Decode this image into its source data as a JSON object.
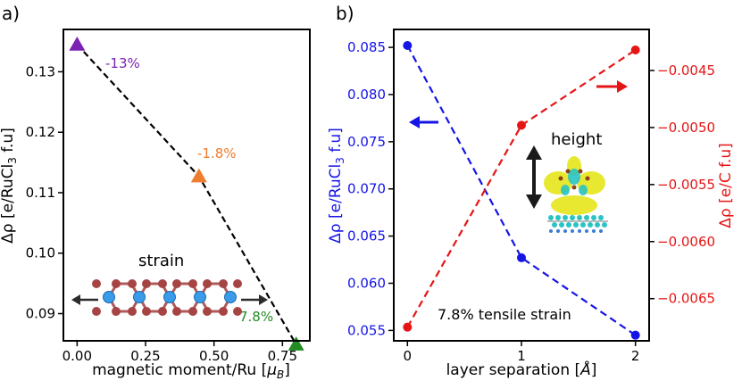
{
  "chart_data": [
    {
      "panel_label": "a)",
      "type": "scatter",
      "xlabel": "magnetic moment/Ru [",
      "xlabel_unit_base": "μ",
      "xlabel_unit_sub": "B",
      "xlabel_close": "]",
      "ylabel": "Δρ [e/RuCl",
      "ylabel_sub": "3",
      "ylabel_close": " f.u]",
      "xlim": [
        -0.05,
        0.85
      ],
      "ylim": [
        0.0855,
        0.137
      ],
      "xticks": [
        0.0,
        0.25,
        0.5,
        0.75
      ],
      "xtick_labels": [
        "0.00",
        "0.25",
        "0.50",
        "0.75"
      ],
      "yticks": [
        0.09,
        0.1,
        0.11,
        0.12,
        0.13
      ],
      "ytick_labels": [
        "0.09",
        "0.10",
        "0.11",
        "0.12",
        "0.13"
      ],
      "trend_line": {
        "style": "dashed",
        "color": "#000000"
      },
      "points": [
        {
          "x": 0.0,
          "y": 0.1345,
          "label": "-13%",
          "color": "#7b22b4"
        },
        {
          "x": 0.445,
          "y": 0.1127,
          "label": "-1.8%",
          "color": "#ef7d2f"
        },
        {
          "x": 0.8,
          "y": 0.0849,
          "label": "7.8%",
          "color": "#228b22"
        }
      ],
      "inset": {
        "text": "strain"
      }
    },
    {
      "panel_label": "b)",
      "type": "line",
      "xlabel": "layer separation [",
      "xlabel_unit": "Å",
      "xlabel_close": "]",
      "xlim": [
        -0.12,
        2.12
      ],
      "xticks": [
        0,
        1,
        2
      ],
      "xtick_labels": [
        "0",
        "1",
        "2"
      ],
      "left_axis": {
        "label": "Δρ [e/RuCl",
        "label_sub": "3",
        "label_close": " f.u]",
        "color": "#1515e6",
        "ylim": [
          0.0539,
          0.0869
        ],
        "yticks": [
          0.055,
          0.06,
          0.065,
          0.07,
          0.075,
          0.08,
          0.085
        ],
        "ytick_labels": [
          "0.055",
          "0.060",
          "0.065",
          "0.070",
          "0.075",
          "0.080",
          "0.085"
        ]
      },
      "right_axis": {
        "label": "Δρ [e/C f.u]",
        "color": "#e61515",
        "ylim": [
          -0.00687,
          -0.00414
        ],
        "yticks": [
          -0.0065,
          -0.006,
          -0.0055,
          -0.005,
          -0.0045
        ],
        "ytick_labels": [
          "−0.0065",
          "−0.0060",
          "−0.0055",
          "−0.0050",
          "−0.0045"
        ]
      },
      "x": [
        0,
        1,
        2
      ],
      "series": [
        {
          "axis": "left",
          "color": "#1515e6",
          "style": "dashed",
          "values": [
            0.0852,
            0.0627,
            0.0545
          ]
        },
        {
          "axis": "right",
          "color": "#e61515",
          "style": "dashed",
          "values": [
            -0.00675,
            -0.00498,
            -0.00432
          ]
        }
      ],
      "annotations": {
        "inset_text": "height",
        "strain_text": "7.8% tensile strain"
      }
    }
  ]
}
